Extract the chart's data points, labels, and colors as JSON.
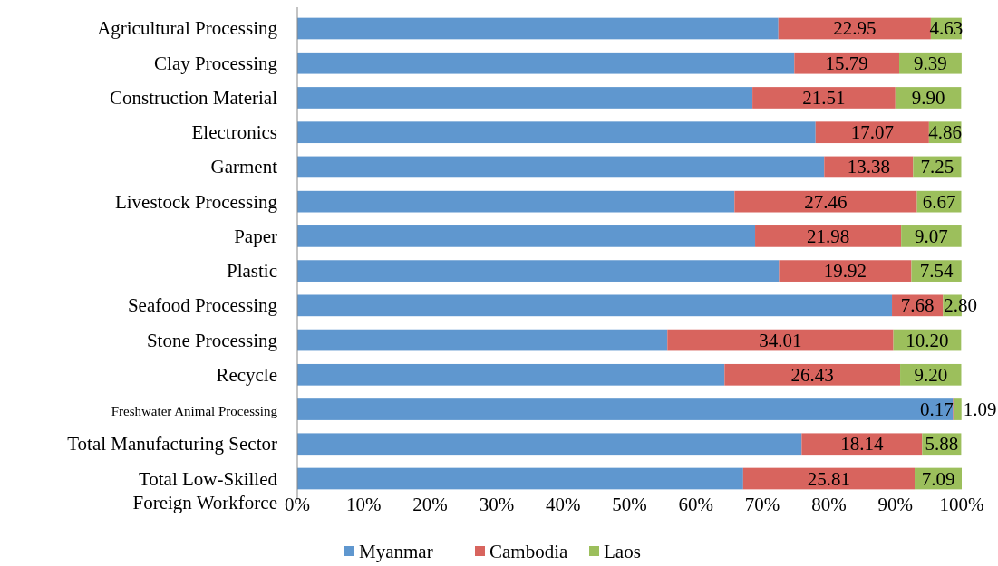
{
  "chart_data": {
    "type": "bar",
    "orientation": "horizontal",
    "stacked": true,
    "categories": [
      "Agricultural Processing",
      "Clay Processing",
      "Construction Material",
      "Electronics",
      "Garment",
      "Livestock Processing",
      "Paper",
      "Plastic",
      "Seafood Processing",
      "Stone Processing",
      "Recycle",
      "Freshwater Animal Processing",
      "Total Manufacturing Sector",
      "Total Low-Skilled Foreign Workforce"
    ],
    "series": [
      {
        "name": "Myanmar",
        "color": "#5f97cf",
        "values": [
          72.4,
          74.8,
          68.5,
          78.0,
          79.3,
          65.8,
          68.9,
          72.5,
          89.5,
          55.7,
          64.3,
          98.7,
          75.9,
          67.1
        ]
      },
      {
        "name": "Cambodia",
        "color": "#d8645e",
        "values": [
          22.95,
          15.79,
          21.51,
          17.07,
          13.38,
          27.46,
          21.98,
          19.92,
          7.68,
          34.01,
          26.43,
          0.17,
          18.14,
          25.81
        ],
        "value_labels": [
          "22.95",
          "15.79",
          "21.51",
          "17.07",
          "13.38",
          "27.46",
          "21.98",
          "19.92",
          "7.68",
          "34.01",
          "26.43",
          "0.17",
          "18.14",
          "25.81"
        ]
      },
      {
        "name": "Laos",
        "color": "#9cbf5c",
        "values": [
          4.63,
          9.39,
          9.9,
          4.86,
          7.25,
          6.67,
          9.07,
          7.54,
          2.8,
          10.2,
          9.2,
          1.09,
          5.88,
          7.09
        ],
        "value_labels": [
          "4.63",
          "9.39",
          "9.90",
          "4.86",
          "7.25",
          "6.67",
          "9.07",
          "7.54",
          "2.80",
          "10.20",
          "9.20",
          "1.09",
          "5.88",
          "7.09"
        ]
      }
    ],
    "xlim": [
      0,
      100
    ],
    "xticks": [
      {
        "value": 0,
        "label": "0%"
      },
      {
        "value": 10,
        "label": "10%"
      },
      {
        "value": 20,
        "label": "20%"
      },
      {
        "value": 30,
        "label": "30%"
      },
      {
        "value": 40,
        "label": "40%"
      },
      {
        "value": 50,
        "label": "50%"
      },
      {
        "value": 60,
        "label": "60%"
      },
      {
        "value": 70,
        "label": "70%"
      },
      {
        "value": 80,
        "label": "80%"
      },
      {
        "value": 90,
        "label": "90%"
      },
      {
        "value": 100,
        "label": "100%"
      }
    ],
    "legend": "bottom",
    "grid": false
  }
}
